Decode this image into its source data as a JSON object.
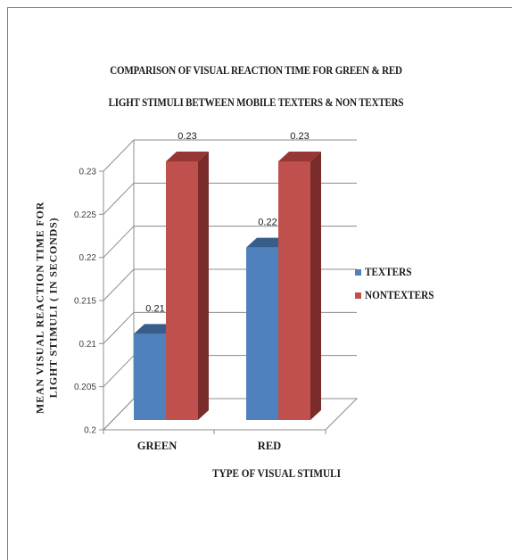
{
  "chart_data": {
    "type": "bar",
    "title_lines": [
      "COMPARISON OF  VISUAL REACTION TIME FOR GREEN & RED",
      "LIGHT STIMULI BETWEEN MOBILE TEXTERS & NON TEXTERS"
    ],
    "xlabel": "TYPE OF VISUAL STIMULI",
    "ylabel_lines": [
      "MEAN VISUAL REACTION TIME FOR",
      "LIGHT STIMULI (  IN SECONDS)"
    ],
    "categories": [
      "GREEN",
      "RED"
    ],
    "series": [
      {
        "name": "TEXTERS",
        "values": [
          0.21,
          0.22
        ],
        "labels": [
          "0.21",
          "0.22"
        ],
        "color": "#4f81bd",
        "top_color": "#385d8a",
        "side_color": "#2c4d75"
      },
      {
        "name": "NONTEXTERS",
        "values": [
          0.23,
          0.23
        ],
        "labels": [
          "0.23",
          "0.23"
        ],
        "color": "#c0504d",
        "top_color": "#953735",
        "side_color": "#7a2c2a"
      }
    ],
    "ylim": [
      0.2,
      0.23
    ],
    "yticks": [
      "0.2",
      "0.205",
      "0.21",
      "0.215",
      "0.22",
      "0.225",
      "0.23"
    ],
    "ytick_values": [
      0.2,
      0.205,
      0.21,
      0.215,
      0.22,
      0.225,
      0.23
    ],
    "grid": true,
    "legend_position": "right",
    "style": "3d-clustered-column"
  }
}
